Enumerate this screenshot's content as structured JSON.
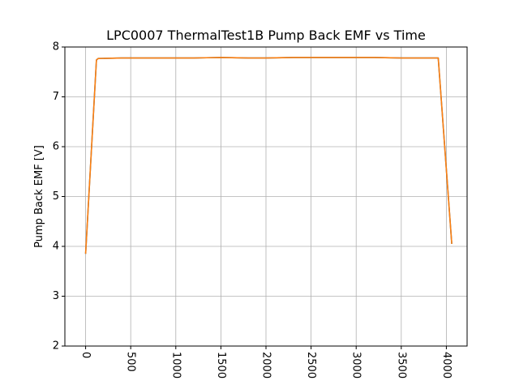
{
  "chart_data": {
    "type": "line",
    "title": "LPC0007 ThermalTest1B Pump Back EMF vs Time",
    "xlabel": "",
    "ylabel": "Pump Back EMF [V]",
    "xlim": [
      -230,
      4230
    ],
    "ylim": [
      2,
      8
    ],
    "xticks": [
      0,
      500,
      1000,
      1500,
      2000,
      2500,
      3000,
      3500,
      4000
    ],
    "yticks": [
      2,
      3,
      4,
      5,
      6,
      7,
      8
    ],
    "xtick_rotation": 90,
    "grid": true,
    "legend": "none",
    "series": [
      {
        "color": "#1f77b4",
        "x": [
          0,
          120,
          140,
          400,
          800,
          1200,
          1500,
          1800,
          2000,
          2300,
          2500,
          2800,
          3000,
          3200,
          3500,
          3800,
          3910,
          4060
        ],
        "y": [
          3.85,
          7.74,
          7.77,
          7.78,
          7.78,
          7.78,
          7.79,
          7.78,
          7.78,
          7.79,
          7.79,
          7.79,
          7.79,
          7.79,
          7.78,
          7.78,
          7.78,
          4.05
        ]
      },
      {
        "color": "#ff7f0e",
        "x": [
          0,
          120,
          140,
          400,
          800,
          1200,
          1500,
          1800,
          2000,
          2300,
          2500,
          2800,
          3000,
          3200,
          3500,
          3800,
          3910,
          4060
        ],
        "y": [
          3.85,
          7.74,
          7.77,
          7.78,
          7.78,
          7.78,
          7.79,
          7.78,
          7.78,
          7.79,
          7.79,
          7.79,
          7.79,
          7.79,
          7.78,
          7.78,
          7.78,
          4.05
        ]
      }
    ]
  }
}
